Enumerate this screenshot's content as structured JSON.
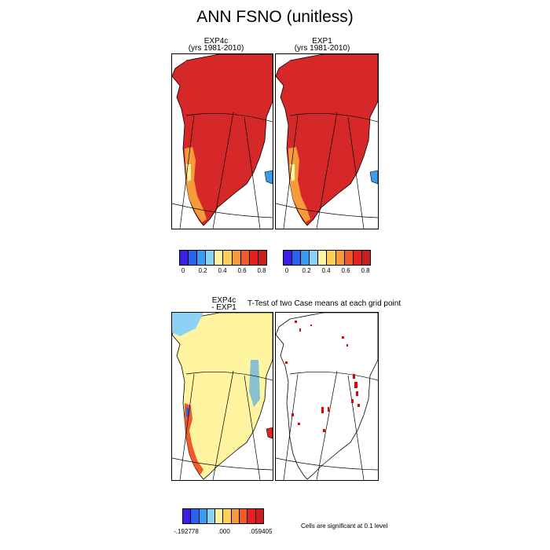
{
  "title": "ANN FSNO (unitless)",
  "panels": {
    "exp4c_title": "EXP4c",
    "exp4c_subtitle": "(yrs 1981-2010)",
    "exp1_title": "EXP1",
    "exp1_subtitle": "(yrs 1981-2010)",
    "diff_title_1": "EXP4c",
    "diff_title_2": "- EXP1",
    "ttest_title": "T-Test of two Case means at each grid point",
    "significance_note": "Cells are significant at 0.1 level"
  },
  "colorbar_top": {
    "colors": [
      "#3a1ee8",
      "#2a62ea",
      "#3a9cf0",
      "#8cd2f5",
      "#fdf5a0",
      "#fbd05a",
      "#f79a3a",
      "#f05a28",
      "#e62020",
      "#c81e1e"
    ],
    "ticks": [
      "0",
      "0.2",
      "0.4",
      "0.6",
      "0.8"
    ]
  },
  "colorbar_bottom": {
    "colors": [
      "#3a1ee8",
      "#2a62ea",
      "#3a9cf0",
      "#8cd2f5",
      "#fdf5a0",
      "#fbd05a",
      "#f79a3a",
      "#f05a28",
      "#e62020",
      "#c81e1e"
    ],
    "ticks": [
      ".192778",
      ".000",
      ".059405"
    ],
    "tick_prefix_first": "-"
  },
  "map_colors": {
    "greenland_fill": "#d62828",
    "diff_fill": "#fff5a0",
    "significance": "#e60000"
  }
}
